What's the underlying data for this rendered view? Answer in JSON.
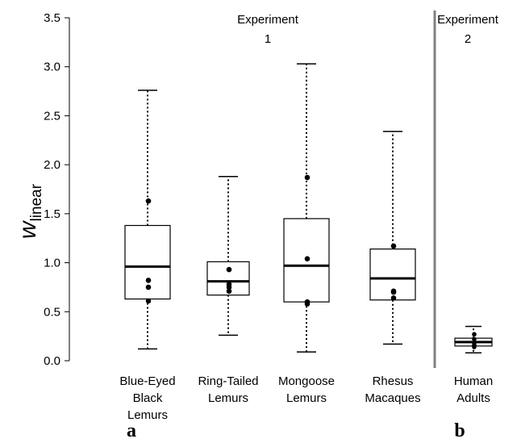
{
  "chart_data": {
    "type": "box",
    "ylabel": {
      "main": "w",
      "subscript": "linear"
    },
    "ylim": [
      0,
      3.5
    ],
    "yticks": [
      0.0,
      0.5,
      1.0,
      1.5,
      2.0,
      2.5,
      3.0,
      3.5
    ],
    "ytick_labels": [
      "0.0",
      "0.5",
      "1.0",
      "1.5",
      "2.0",
      "2.5",
      "3.0",
      "3.5"
    ],
    "categories": [
      {
        "lines": [
          "Blue-Eyed",
          "Black",
          "Lemurs"
        ]
      },
      {
        "lines": [
          "Ring-Tailed",
          "Lemurs"
        ]
      },
      {
        "lines": [
          "Mongoose",
          "Lemurs"
        ]
      },
      {
        "lines": [
          "Rhesus",
          "Macaques"
        ]
      },
      {
        "lines": [
          "Human",
          "Adults"
        ]
      }
    ],
    "boxes": [
      {
        "min": 0.12,
        "q1": 0.63,
        "median": 0.96,
        "q3": 1.38,
        "max": 2.76,
        "points": [
          1.63,
          0.82,
          0.75,
          0.61
        ]
      },
      {
        "min": 0.26,
        "q1": 0.67,
        "median": 0.81,
        "q3": 1.01,
        "max": 1.88,
        "points": [
          0.93,
          0.78,
          0.75,
          0.71
        ]
      },
      {
        "min": 0.09,
        "q1": 0.6,
        "median": 0.97,
        "q3": 1.45,
        "max": 3.03,
        "points": [
          1.87,
          1.04,
          0.6,
          0.58
        ]
      },
      {
        "min": 0.17,
        "q1": 0.62,
        "median": 0.84,
        "q3": 1.14,
        "max": 2.34,
        "points": [
          1.17,
          0.71,
          0.7,
          0.64
        ]
      },
      {
        "min": 0.08,
        "q1": 0.15,
        "median": 0.19,
        "q3": 0.23,
        "max": 0.35,
        "points": [
          0.27,
          0.22,
          0.18,
          0.16,
          0.14
        ]
      }
    ],
    "annotations": {
      "experiment1": {
        "lines": [
          "Experiment",
          "1"
        ]
      },
      "experiment2": {
        "lines": [
          "Experiment",
          "2"
        ]
      }
    },
    "panel_labels": {
      "a": "a",
      "b": "b"
    },
    "grid": false
  }
}
